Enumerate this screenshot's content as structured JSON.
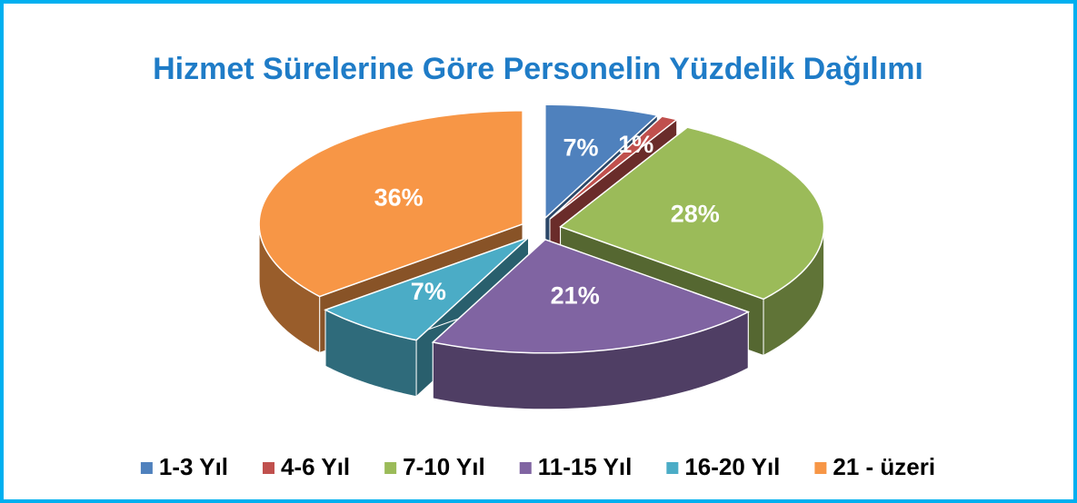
{
  "chart_data": {
    "type": "pie",
    "title": "Hizmet Sürelerine Göre Personelin Yüzdelik Dağılımı",
    "categories": [
      "1-3 Yıl",
      "4-6 Yıl",
      "7-10 Yıl",
      "11-15 Yıl",
      "16-20 Yıl",
      "21 - üzeri"
    ],
    "values": [
      7,
      1,
      28,
      21,
      7,
      36
    ],
    "value_labels": [
      "7%",
      "1%",
      "28%",
      "21%",
      "7%",
      "36%"
    ],
    "colors": [
      "#4f81bd",
      "#c0504d",
      "#9bbb59",
      "#8064a2",
      "#4bacc6",
      "#f79646"
    ],
    "legend": "bottom"
  }
}
